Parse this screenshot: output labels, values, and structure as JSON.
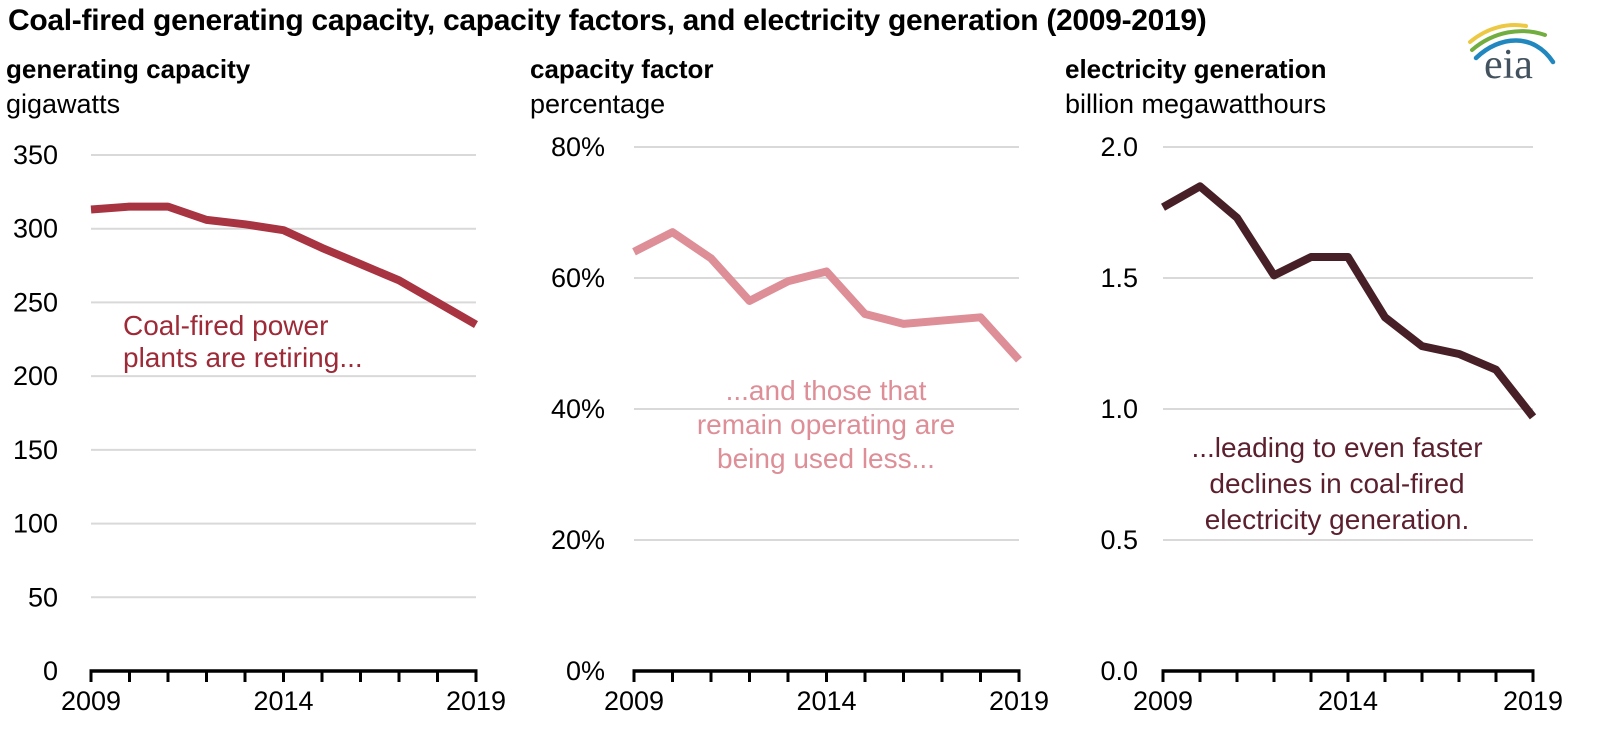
{
  "page": {
    "title": "Coal-fired generating capacity, capacity factors, and electricity generation (2009-2019)",
    "logo_text": "eia"
  },
  "chart_data": [
    {
      "type": "line",
      "title": "generating capacity",
      "ylabel": "gigawatts",
      "x": [
        2009,
        2010,
        2011,
        2012,
        2013,
        2014,
        2015,
        2016,
        2017,
        2018,
        2019
      ],
      "values": [
        313,
        315,
        315,
        306,
        303,
        299,
        287,
        276,
        265,
        250,
        235
      ],
      "ylim": [
        0,
        350
      ],
      "yticks": [
        0,
        50,
        100,
        150,
        200,
        250,
        300,
        350
      ],
      "ytick_labels": [
        "0",
        "50",
        "100",
        "150",
        "200",
        "250",
        "300",
        "350"
      ],
      "xtick_years": [
        2009,
        2014,
        2019
      ],
      "xtick_labels": [
        "2009",
        "2014",
        "2019"
      ],
      "grid": true,
      "line_color": "#a83341",
      "annotation": {
        "text_lines": [
          "Coal-fired power",
          "plants are retiring..."
        ],
        "color": "#9e2a38"
      }
    },
    {
      "type": "line",
      "title": "capacity factor",
      "ylabel": "percentage",
      "x": [
        2009,
        2010,
        2011,
        2012,
        2013,
        2014,
        2015,
        2016,
        2017,
        2018,
        2019
      ],
      "values": [
        64,
        67,
        63,
        56.5,
        59.5,
        61,
        54.5,
        53,
        53.5,
        54,
        47.5
      ],
      "ylim": [
        0,
        80
      ],
      "yticks": [
        0,
        20,
        40,
        60,
        80
      ],
      "ytick_labels": [
        "0%",
        "20%",
        "40%",
        "60%",
        "80%"
      ],
      "xtick_years": [
        2009,
        2014,
        2019
      ],
      "xtick_labels": [
        "2009",
        "2014",
        "2019"
      ],
      "grid": true,
      "line_color": "#dd8e97",
      "annotation": {
        "text_lines": [
          "...and those that",
          "remain operating are",
          "being used less..."
        ],
        "color": "#dd8e97"
      }
    },
    {
      "type": "line",
      "title": "electricity generation",
      "ylabel": "billion megawatthours",
      "x": [
        2009,
        2010,
        2011,
        2012,
        2013,
        2014,
        2015,
        2016,
        2017,
        2018,
        2019
      ],
      "values": [
        1.77,
        1.85,
        1.73,
        1.51,
        1.58,
        1.58,
        1.35,
        1.24,
        1.21,
        1.15,
        0.97
      ],
      "ylim": [
        0,
        2.0
      ],
      "yticks": [
        0,
        0.5,
        1.0,
        1.5,
        2.0
      ],
      "ytick_labels": [
        "0.0",
        "0.5",
        "1.0",
        "1.5",
        "2.0"
      ],
      "xtick_years": [
        2009,
        2014,
        2019
      ],
      "xtick_labels": [
        "2009",
        "2014",
        "2019"
      ],
      "grid": true,
      "line_color": "#471f26",
      "annotation": {
        "text_lines": [
          "...leading to even faster",
          "declines in coal-fired",
          "electricity generation."
        ],
        "color": "#5b1f2e"
      }
    }
  ]
}
